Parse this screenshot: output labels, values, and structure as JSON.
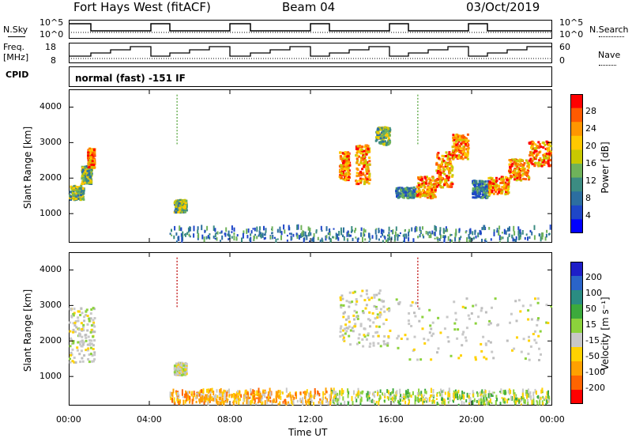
{
  "header": {
    "title": "Fort Hays West (fitACF)",
    "beam": "Beam 04",
    "date": "03/Oct/2019"
  },
  "aux": {
    "nsky_label": "N.Sky",
    "nsearch_label": "N.Search",
    "freq_label_1": "Freq.",
    "freq_label_2": "[MHz]",
    "nave_label": "Nave",
    "cpid_label": "CPID",
    "noise_tick_top": "10^5",
    "noise_tick_bottom": "10^0",
    "noise_tick_top_right": "10^5",
    "noise_tick_bottom_right": "10^0",
    "freq_tick_top": "18",
    "freq_tick_bottom": "8",
    "nave_tick_top": "60",
    "nave_tick_bottom": "0",
    "cpid_text": "normal (fast) -151 IF"
  },
  "axes": {
    "ylabel": "Slant Range [km]",
    "xlabel": "Time UT",
    "yticks": [
      "4000",
      "3000",
      "2000",
      "1000"
    ],
    "xticks": [
      "00:00",
      "04:00",
      "08:00",
      "12:00",
      "16:00",
      "20:00",
      "00:00"
    ]
  },
  "colorbars": {
    "power": {
      "label": "Power [dB]",
      "ticks": [
        "28",
        "24",
        "20",
        "16",
        "12",
        "8",
        "4"
      ],
      "colors": [
        "#ff0000",
        "#ff5a00",
        "#ff9600",
        "#ffc800",
        "#c8c800",
        "#6fb25a",
        "#3c8c82",
        "#2c6ea0",
        "#1e46c8",
        "#0000ff"
      ]
    },
    "velocity": {
      "label": "Velocity [m s⁻¹]",
      "ticks": [
        "200",
        "100",
        "50",
        "15",
        "-15",
        "-50",
        "-100",
        "-200"
      ],
      "colors": [
        "#1e1ec8",
        "#2a64c8",
        "#2a8c82",
        "#3caa3c",
        "#8cd23c",
        "#c8c8c8",
        "#ffd200",
        "#ffa000",
        "#ff6400",
        "#ff0000"
      ]
    }
  },
  "chart_data": [
    {
      "type": "heatmap",
      "name": "power",
      "ylim": [
        180,
        4500
      ],
      "xlim": [
        0,
        24
      ],
      "features": [
        {
          "kind": "blob",
          "x0": 0.0,
          "x1": 0.7,
          "y0": 1350,
          "y1": 1750,
          "level": "mid"
        },
        {
          "kind": "blob",
          "x0": 0.6,
          "x1": 1.1,
          "y0": 1800,
          "y1": 2300,
          "level": "mid"
        },
        {
          "kind": "blob",
          "x0": 0.9,
          "x1": 1.25,
          "y0": 2250,
          "y1": 2800,
          "level": "high"
        },
        {
          "kind": "blob",
          "x0": 5.2,
          "x1": 5.8,
          "y0": 1000,
          "y1": 1350,
          "level": "mid"
        },
        {
          "kind": "blob",
          "x0": 13.4,
          "x1": 13.9,
          "y0": 1900,
          "y1": 2700,
          "level": "high"
        },
        {
          "kind": "blob",
          "x0": 14.2,
          "x1": 14.9,
          "y0": 1800,
          "y1": 2900,
          "level": "high"
        },
        {
          "kind": "blob",
          "x0": 15.2,
          "x1": 15.9,
          "y0": 2900,
          "y1": 3400,
          "level": "mid"
        },
        {
          "kind": "blob",
          "x0": 16.2,
          "x1": 17.2,
          "y0": 1400,
          "y1": 1700,
          "level": "low"
        },
        {
          "kind": "blob",
          "x0": 17.2,
          "x1": 18.2,
          "y0": 1400,
          "y1": 2000,
          "level": "high"
        },
        {
          "kind": "blob",
          "x0": 18.2,
          "x1": 19.0,
          "y0": 1700,
          "y1": 2700,
          "level": "high"
        },
        {
          "kind": "blob",
          "x0": 19.0,
          "x1": 19.8,
          "y0": 2500,
          "y1": 3200,
          "level": "high"
        },
        {
          "kind": "blob",
          "x0": 20.0,
          "x1": 20.8,
          "y0": 1400,
          "y1": 1900,
          "level": "low"
        },
        {
          "kind": "blob",
          "x0": 20.8,
          "x1": 21.8,
          "y0": 1500,
          "y1": 2000,
          "level": "high"
        },
        {
          "kind": "blob",
          "x0": 21.8,
          "x1": 22.8,
          "y0": 1900,
          "y1": 2500,
          "level": "high"
        },
        {
          "kind": "blob",
          "x0": 22.8,
          "x1": 23.9,
          "y0": 2300,
          "y1": 3000,
          "level": "high"
        },
        {
          "kind": "band",
          "x0": 5.0,
          "x1": 23.9,
          "y0": 180,
          "y1": 550,
          "level": "low"
        }
      ]
    },
    {
      "type": "heatmap",
      "name": "velocity",
      "ylim": [
        180,
        4500
      ],
      "xlim": [
        0,
        24
      ],
      "features": [
        {
          "kind": "blob",
          "x0": 0.0,
          "x1": 1.25,
          "y0": 1350,
          "y1": 2900,
          "level": "ground"
        },
        {
          "kind": "blob",
          "x0": 5.2,
          "x1": 5.8,
          "y0": 1000,
          "y1": 1350,
          "level": "ground"
        },
        {
          "kind": "blob",
          "x0": 13.4,
          "x1": 15.9,
          "y0": 1800,
          "y1": 3400,
          "level": "ground"
        },
        {
          "kind": "blob",
          "x0": 16.2,
          "x1": 23.9,
          "y0": 1400,
          "y1": 3200,
          "level": "ground"
        },
        {
          "kind": "band",
          "x0": 5.0,
          "x1": 13.0,
          "y0": 180,
          "y1": 550,
          "level": "negative"
        },
        {
          "kind": "band",
          "x0": 13.0,
          "x1": 23.9,
          "y0": 180,
          "y1": 550,
          "level": "positive"
        }
      ]
    }
  ]
}
